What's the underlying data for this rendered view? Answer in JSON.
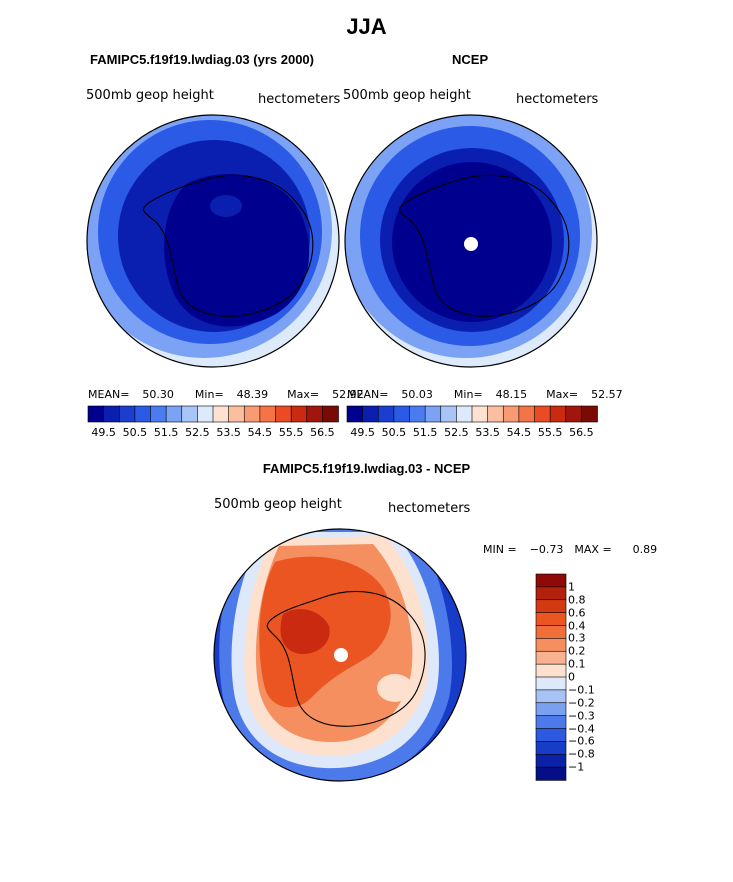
{
  "title": "JJA",
  "panels": [
    {
      "heading": "FAMIPC5.f19f19.lwdiag.03 (yrs 2000)",
      "variable": "500mb geop height",
      "units": "hectometers",
      "mean_label": "MEAN=",
      "mean": "50.30",
      "min_label": "Min=",
      "min": "48.39",
      "max_label": "Max=",
      "max": "52.92"
    },
    {
      "heading": "NCEP",
      "variable": "500mb geop height",
      "units": "hectometers",
      "mean_label": "MEAN=",
      "mean": "50.03",
      "min_label": "Min=",
      "min": "48.15",
      "max_label": "Max=",
      "max": "52.57"
    }
  ],
  "abs_colorbar": {
    "tick_labels": [
      "49.5",
      "50.5",
      "51.5",
      "52.5",
      "53.5",
      "54.5",
      "55.5",
      "56.5"
    ],
    "colors": [
      "#00008f",
      "#0a1fb0",
      "#1a3fcf",
      "#2a5ae6",
      "#4a7cf0",
      "#7ba2f4",
      "#a9c4f7",
      "#dceafc",
      "#fde2d2",
      "#fbbfa0",
      "#f89a72",
      "#f47448",
      "#e94b25",
      "#c92a10",
      "#a0160a",
      "#7a0a04"
    ]
  },
  "diff_panel": {
    "heading": "FAMIPC5.f19f19.lwdiag.03 - NCEP",
    "variable": "500mb geop height",
    "units": "hectometers",
    "min_label": "MIN =",
    "min": "−0.73",
    "max_label": "MAX =",
    "max": "0.89"
  },
  "diff_colorbar": {
    "labels": [
      "1",
      "0.8",
      "0.6",
      "0.4",
      "0.3",
      "0.2",
      "0.1",
      "0",
      "−0.1",
      "−0.2",
      "−0.3",
      "−0.4",
      "−0.6",
      "−0.8",
      "−1"
    ],
    "colors": [
      "#8f0a06",
      "#b3200c",
      "#d43a12",
      "#ea5522",
      "#f06e3a",
      "#f58f60",
      "#f8b28f",
      "#fde0cd",
      "#dde9fa",
      "#a7c2f5",
      "#7ba0f0",
      "#4d7aeb",
      "#2c59e0",
      "#173dc8",
      "#0b22a8",
      "#050e86"
    ]
  },
  "map_colors": {
    "abs_deep": "#00008f",
    "abs_mid": "#0a1fb0",
    "abs_light": "#2a5ae6",
    "abs_pale": "#7ba2f4",
    "abs_edge": "#dceafc",
    "diff_strong": "#c92a10",
    "diff_main": "#ea5522",
    "diff_light": "#f58f60",
    "diff_pale": "#fde0cd",
    "diff_zero": "#dde9fa",
    "diff_neg": "#4d7aeb",
    "diff_neg_strong": "#173dc8"
  }
}
